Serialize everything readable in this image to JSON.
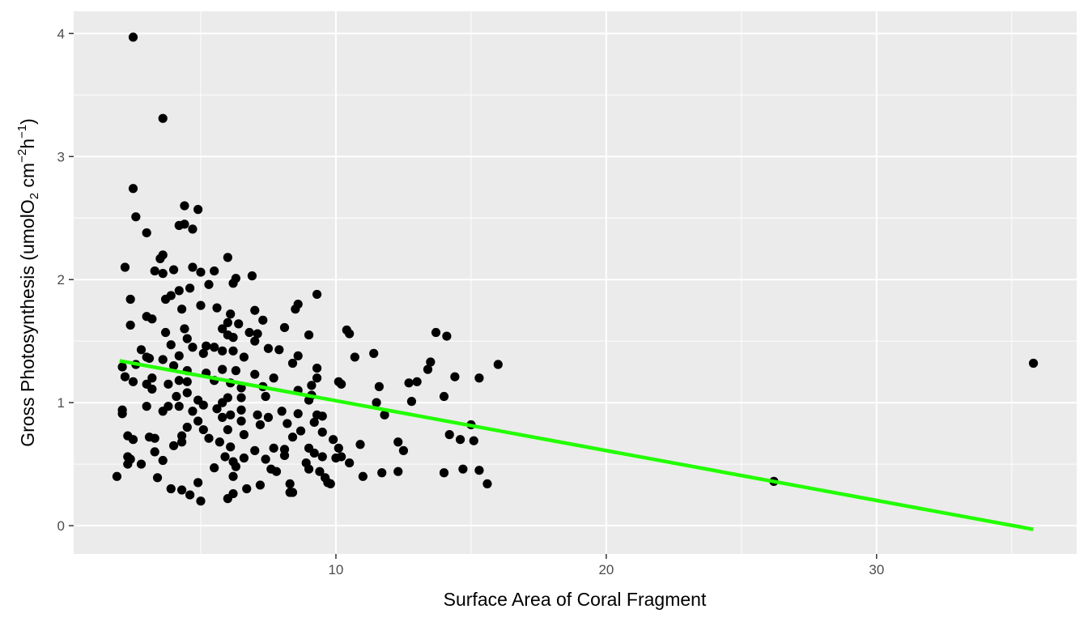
{
  "chart_data": {
    "type": "scatter",
    "title": "",
    "xlabel": "Surface Area of Coral Fragment",
    "ylabel": {
      "prefix": "Gross Photosynthesis (umolO",
      "sub": "2",
      "mid1": " cm",
      "sup1": "−2",
      "mid2": "h",
      "sup2": "−1",
      "suffix": ")"
    },
    "xlim": [
      0.3,
      37.4
    ],
    "ylim": [
      -0.23,
      4.18
    ],
    "x_ticks": [
      10,
      20,
      30
    ],
    "y_ticks": [
      0,
      1,
      2,
      3,
      4
    ],
    "x_tick_labels": [
      "10",
      "20",
      "30"
    ],
    "y_tick_labels": [
      "0",
      "1",
      "2",
      "3",
      "4"
    ],
    "grid": true,
    "panel_color": "#ebebeb",
    "point_color": "#000000",
    "trend_color": "#22ff00",
    "trend_line": {
      "x": [
        2.0,
        35.8
      ],
      "y": [
        1.34,
        -0.03
      ]
    },
    "points": [
      [
        2.5,
        3.97
      ],
      [
        3.6,
        3.31
      ],
      [
        2.5,
        2.74
      ],
      [
        2.6,
        2.51
      ],
      [
        3.0,
        2.38
      ],
      [
        4.4,
        2.6
      ],
      [
        4.9,
        2.57
      ],
      [
        4.2,
        2.44
      ],
      [
        4.4,
        2.45
      ],
      [
        4.7,
        2.41
      ],
      [
        3.5,
        2.17
      ],
      [
        3.6,
        2.2
      ],
      [
        6.0,
        2.18
      ],
      [
        2.2,
        2.1
      ],
      [
        3.3,
        2.07
      ],
      [
        3.6,
        2.05
      ],
      [
        4.0,
        2.08
      ],
      [
        4.7,
        2.1
      ],
      [
        5.0,
        2.06
      ],
      [
        5.5,
        2.07
      ],
      [
        6.3,
        2.01
      ],
      [
        6.9,
        2.03
      ],
      [
        2.4,
        1.84
      ],
      [
        3.7,
        1.84
      ],
      [
        3.9,
        1.87
      ],
      [
        4.2,
        1.91
      ],
      [
        4.6,
        1.93
      ],
      [
        5.3,
        1.96
      ],
      [
        6.2,
        1.97
      ],
      [
        9.3,
        1.88
      ],
      [
        7.0,
        1.75
      ],
      [
        8.6,
        1.8
      ],
      [
        8.5,
        1.76
      ],
      [
        5.0,
        1.79
      ],
      [
        5.6,
        1.77
      ],
      [
        6.1,
        1.72
      ],
      [
        3.0,
        1.7
      ],
      [
        3.2,
        1.68
      ],
      [
        4.3,
        1.76
      ],
      [
        2.4,
        1.63
      ],
      [
        3.7,
        1.57
      ],
      [
        4.4,
        1.6
      ],
      [
        5.8,
        1.6
      ],
      [
        6.0,
        1.65
      ],
      [
        6.4,
        1.64
      ],
      [
        6.8,
        1.57
      ],
      [
        7.1,
        1.56
      ],
      [
        7.3,
        1.67
      ],
      [
        8.1,
        1.61
      ],
      [
        9.0,
        1.55
      ],
      [
        10.4,
        1.59
      ],
      [
        10.5,
        1.56
      ],
      [
        13.7,
        1.57
      ],
      [
        14.1,
        1.54
      ],
      [
        4.5,
        1.52
      ],
      [
        5.2,
        1.46
      ],
      [
        5.5,
        1.45
      ],
      [
        6.0,
        1.55
      ],
      [
        6.2,
        1.53
      ],
      [
        7.0,
        1.5
      ],
      [
        3.9,
        1.47
      ],
      [
        2.8,
        1.43
      ],
      [
        3.0,
        1.37
      ],
      [
        3.6,
        1.35
      ],
      [
        4.2,
        1.38
      ],
      [
        4.7,
        1.45
      ],
      [
        5.1,
        1.4
      ],
      [
        5.8,
        1.42
      ],
      [
        6.2,
        1.42
      ],
      [
        6.6,
        1.37
      ],
      [
        7.5,
        1.44
      ],
      [
        7.9,
        1.43
      ],
      [
        8.6,
        1.38
      ],
      [
        8.4,
        1.32
      ],
      [
        9.3,
        1.28
      ],
      [
        10.7,
        1.37
      ],
      [
        11.4,
        1.4
      ],
      [
        13.5,
        1.33
      ],
      [
        13.4,
        1.27
      ],
      [
        16.0,
        1.31
      ],
      [
        35.8,
        1.32
      ],
      [
        2.1,
        1.29
      ],
      [
        2.6,
        1.31
      ],
      [
        3.1,
        1.36
      ],
      [
        4.0,
        1.3
      ],
      [
        4.5,
        1.26
      ],
      [
        5.2,
        1.24
      ],
      [
        5.8,
        1.27
      ],
      [
        6.3,
        1.26
      ],
      [
        7.0,
        1.23
      ],
      [
        2.2,
        1.21
      ],
      [
        2.5,
        1.17
      ],
      [
        3.0,
        1.15
      ],
      [
        3.2,
        1.2
      ],
      [
        3.8,
        1.15
      ],
      [
        4.2,
        1.18
      ],
      [
        4.5,
        1.17
      ],
      [
        5.5,
        1.18
      ],
      [
        6.1,
        1.16
      ],
      [
        6.5,
        1.12
      ],
      [
        7.3,
        1.13
      ],
      [
        7.7,
        1.2
      ],
      [
        9.1,
        1.14
      ],
      [
        9.3,
        1.2
      ],
      [
        10.1,
        1.17
      ],
      [
        10.2,
        1.15
      ],
      [
        11.6,
        1.13
      ],
      [
        12.7,
        1.16
      ],
      [
        13.0,
        1.17
      ],
      [
        14.4,
        1.21
      ],
      [
        15.3,
        1.2
      ],
      [
        3.2,
        1.11
      ],
      [
        4.1,
        1.05
      ],
      [
        4.5,
        1.08
      ],
      [
        4.9,
        1.02
      ],
      [
        5.8,
        1.0
      ],
      [
        6.0,
        1.04
      ],
      [
        6.5,
        1.04
      ],
      [
        7.4,
        1.05
      ],
      [
        8.6,
        1.1
      ],
      [
        9.1,
        1.06
      ],
      [
        9.0,
        1.02
      ],
      [
        11.5,
        1.0
      ],
      [
        12.8,
        1.01
      ],
      [
        14.0,
        1.05
      ],
      [
        2.1,
        0.94
      ],
      [
        2.1,
        0.91
      ],
      [
        3.0,
        0.97
      ],
      [
        3.6,
        0.93
      ],
      [
        3.8,
        0.97
      ],
      [
        4.2,
        0.97
      ],
      [
        4.7,
        0.93
      ],
      [
        5.1,
        0.98
      ],
      [
        5.6,
        0.95
      ],
      [
        6.1,
        0.9
      ],
      [
        6.5,
        0.94
      ],
      [
        7.1,
        0.9
      ],
      [
        7.5,
        0.88
      ],
      [
        8.0,
        0.93
      ],
      [
        8.6,
        0.91
      ],
      [
        9.5,
        0.89
      ],
      [
        11.8,
        0.9
      ],
      [
        4.9,
        0.85
      ],
      [
        5.8,
        0.88
      ],
      [
        6.5,
        0.85
      ],
      [
        7.2,
        0.82
      ],
      [
        8.2,
        0.83
      ],
      [
        9.2,
        0.84
      ],
      [
        9.3,
        0.9
      ],
      [
        15.0,
        0.82
      ],
      [
        4.5,
        0.8
      ],
      [
        5.1,
        0.78
      ],
      [
        6.0,
        0.78
      ],
      [
        8.7,
        0.77
      ],
      [
        14.2,
        0.74
      ],
      [
        2.3,
        0.73
      ],
      [
        2.5,
        0.7
      ],
      [
        3.1,
        0.72
      ],
      [
        3.3,
        0.71
      ],
      [
        4.3,
        0.73
      ],
      [
        5.3,
        0.71
      ],
      [
        5.7,
        0.68
      ],
      [
        6.6,
        0.74
      ],
      [
        8.4,
        0.72
      ],
      [
        9.5,
        0.76
      ],
      [
        9.9,
        0.7
      ],
      [
        12.3,
        0.68
      ],
      [
        14.6,
        0.7
      ],
      [
        15.1,
        0.69
      ],
      [
        4.0,
        0.65
      ],
      [
        4.3,
        0.68
      ],
      [
        6.1,
        0.64
      ],
      [
        7.0,
        0.61
      ],
      [
        7.7,
        0.63
      ],
      [
        8.1,
        0.62
      ],
      [
        9.0,
        0.63
      ],
      [
        9.2,
        0.59
      ],
      [
        10.1,
        0.63
      ],
      [
        10.9,
        0.66
      ],
      [
        12.5,
        0.61
      ],
      [
        2.3,
        0.56
      ],
      [
        2.4,
        0.54
      ],
      [
        2.8,
        0.5
      ],
      [
        2.3,
        0.5
      ],
      [
        3.3,
        0.6
      ],
      [
        3.6,
        0.53
      ],
      [
        5.9,
        0.56
      ],
      [
        6.2,
        0.52
      ],
      [
        6.6,
        0.55
      ],
      [
        7.4,
        0.54
      ],
      [
        8.1,
        0.57
      ],
      [
        9.5,
        0.56
      ],
      [
        10.2,
        0.56
      ],
      [
        10.5,
        0.51
      ],
      [
        8.9,
        0.51
      ],
      [
        9.0,
        0.46
      ],
      [
        7.6,
        0.46
      ],
      [
        7.8,
        0.44
      ],
      [
        9.4,
        0.44
      ],
      [
        10.0,
        0.55
      ],
      [
        6.3,
        0.48
      ],
      [
        5.5,
        0.47
      ],
      [
        6.2,
        0.4
      ],
      [
        8.3,
        0.34
      ],
      [
        9.7,
        0.35
      ],
      [
        9.8,
        0.34
      ],
      [
        1.9,
        0.4
      ],
      [
        3.4,
        0.39
      ],
      [
        4.3,
        0.29
      ],
      [
        3.9,
        0.3
      ],
      [
        4.9,
        0.35
      ],
      [
        4.6,
        0.25
      ],
      [
        5.0,
        0.2
      ],
      [
        6.0,
        0.22
      ],
      [
        6.2,
        0.26
      ],
      [
        6.7,
        0.3
      ],
      [
        7.2,
        0.33
      ],
      [
        8.3,
        0.27
      ],
      [
        8.4,
        0.27
      ],
      [
        9.6,
        0.39
      ],
      [
        11.0,
        0.4
      ],
      [
        11.7,
        0.43
      ],
      [
        12.3,
        0.44
      ],
      [
        14.0,
        0.43
      ],
      [
        14.7,
        0.46
      ],
      [
        15.3,
        0.45
      ],
      [
        15.6,
        0.34
      ],
      [
        26.2,
        0.36
      ]
    ]
  }
}
